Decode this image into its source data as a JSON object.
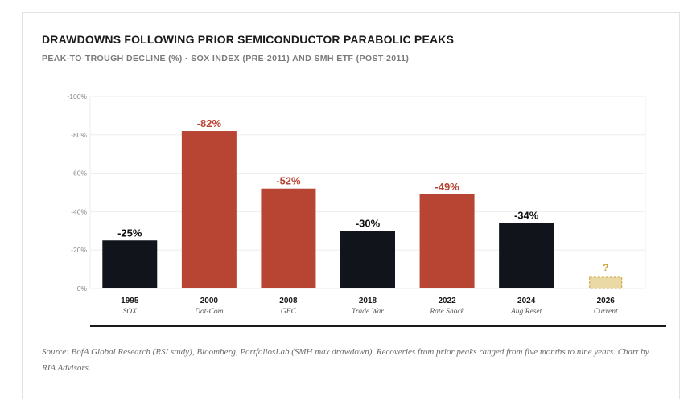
{
  "chart_data": {
    "type": "bar",
    "title": "DRAWDOWNS FOLLOWING PRIOR SEMICONDUCTOR PARABOLIC PEAKS",
    "subtitle": "PEAK-TO-TROUGH DECLINE (%) · SOX INDEX (PRE-2011) AND SMH ETF (POST-2011)",
    "ylim": [
      0,
      100
    ],
    "y_ticks": [
      {
        "value": 0,
        "label": "0%"
      },
      {
        "value": 20,
        "label": "-20%"
      },
      {
        "value": 40,
        "label": "-40%"
      },
      {
        "value": 60,
        "label": "-60%"
      },
      {
        "value": 80,
        "label": "-80%"
      },
      {
        "value": 100,
        "label": "-100%"
      }
    ],
    "grid": true,
    "categories": [
      {
        "year": "1995",
        "sub": "SOX",
        "value": 25,
        "label": "-25%",
        "highlight": false
      },
      {
        "year": "2000",
        "sub": "Dot-Com",
        "value": 82,
        "label": "-82%",
        "highlight": true
      },
      {
        "year": "2008",
        "sub": "GFC",
        "value": 52,
        "label": "-52%",
        "highlight": true
      },
      {
        "year": "2018",
        "sub": "Trade War",
        "value": 30,
        "label": "-30%",
        "highlight": false
      },
      {
        "year": "2022",
        "sub": "Rate Shock",
        "value": 49,
        "label": "-49%",
        "highlight": true
      },
      {
        "year": "2024",
        "sub": "Aug Reset",
        "value": 34,
        "label": "-34%",
        "highlight": false
      },
      {
        "year": "2026",
        "sub": "Current",
        "value": null,
        "label": "?",
        "placeholder": true
      }
    ],
    "colors": {
      "dark": "#12141c",
      "red": "#b84433",
      "placeholder_fill": "#ead9a4",
      "placeholder_stroke": "#c9a53a",
      "placeholder_text": "#c9a53a",
      "grid": "#ededed",
      "axis": "#1a1a1a"
    }
  },
  "source": "Source: BofA Global Research (RSI study), Bloomberg, PortfoliosLab (SMH max drawdown). Recoveries from prior peaks ranged from five months to nine years. Chart by RIA Advisors."
}
